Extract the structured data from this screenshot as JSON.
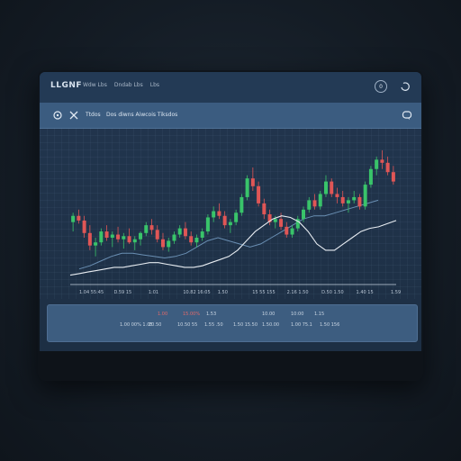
{
  "app": {
    "logo": "LLGNF"
  },
  "top_nav": [
    "Wdw Lbs",
    "Dndab Lbs",
    "Lbs"
  ],
  "top_buttons": {
    "circle_label": "0"
  },
  "toolbar": {
    "label_small": "Ttdos",
    "label_main": "Dos diwns Aiwcois  Tiksdos"
  },
  "chart_data": {
    "type": "candlestick",
    "title": "",
    "candles": [
      {
        "o": 40,
        "h": 46,
        "l": 34,
        "c": 44
      },
      {
        "o": 44,
        "h": 48,
        "l": 39,
        "c": 41
      },
      {
        "o": 41,
        "h": 44,
        "l": 30,
        "c": 33
      },
      {
        "o": 33,
        "h": 38,
        "l": 22,
        "c": 25
      },
      {
        "o": 25,
        "h": 30,
        "l": 18,
        "c": 27
      },
      {
        "o": 27,
        "h": 36,
        "l": 25,
        "c": 34
      },
      {
        "o": 34,
        "h": 38,
        "l": 28,
        "c": 30
      },
      {
        "o": 30,
        "h": 34,
        "l": 24,
        "c": 32
      },
      {
        "o": 32,
        "h": 37,
        "l": 27,
        "c": 29
      },
      {
        "o": 29,
        "h": 33,
        "l": 23,
        "c": 31
      },
      {
        "o": 31,
        "h": 36,
        "l": 26,
        "c": 27
      },
      {
        "o": 27,
        "h": 31,
        "l": 22,
        "c": 29
      },
      {
        "o": 29,
        "h": 34,
        "l": 25,
        "c": 33
      },
      {
        "o": 33,
        "h": 40,
        "l": 31,
        "c": 38
      },
      {
        "o": 38,
        "h": 42,
        "l": 32,
        "c": 35
      },
      {
        "o": 35,
        "h": 38,
        "l": 27,
        "c": 29
      },
      {
        "o": 29,
        "h": 33,
        "l": 22,
        "c": 24
      },
      {
        "o": 24,
        "h": 30,
        "l": 21,
        "c": 28
      },
      {
        "o": 28,
        "h": 34,
        "l": 26,
        "c": 32
      },
      {
        "o": 32,
        "h": 38,
        "l": 30,
        "c": 36
      },
      {
        "o": 36,
        "h": 40,
        "l": 29,
        "c": 31
      },
      {
        "o": 31,
        "h": 34,
        "l": 25,
        "c": 27
      },
      {
        "o": 27,
        "h": 32,
        "l": 24,
        "c": 30
      },
      {
        "o": 30,
        "h": 36,
        "l": 28,
        "c": 34
      },
      {
        "o": 34,
        "h": 45,
        "l": 32,
        "c": 43
      },
      {
        "o": 43,
        "h": 50,
        "l": 40,
        "c": 47
      },
      {
        "o": 47,
        "h": 52,
        "l": 42,
        "c": 44
      },
      {
        "o": 44,
        "h": 47,
        "l": 36,
        "c": 38
      },
      {
        "o": 38,
        "h": 42,
        "l": 33,
        "c": 40
      },
      {
        "o": 40,
        "h": 48,
        "l": 38,
        "c": 46
      },
      {
        "o": 46,
        "h": 58,
        "l": 44,
        "c": 56
      },
      {
        "o": 56,
        "h": 70,
        "l": 54,
        "c": 68
      },
      {
        "o": 68,
        "h": 75,
        "l": 60,
        "c": 63
      },
      {
        "o": 63,
        "h": 66,
        "l": 50,
        "c": 52
      },
      {
        "o": 52,
        "h": 55,
        "l": 42,
        "c": 45
      },
      {
        "o": 45,
        "h": 48,
        "l": 38,
        "c": 40
      },
      {
        "o": 40,
        "h": 44,
        "l": 36,
        "c": 42
      },
      {
        "o": 42,
        "h": 46,
        "l": 35,
        "c": 37
      },
      {
        "o": 37,
        "h": 40,
        "l": 30,
        "c": 32
      },
      {
        "o": 32,
        "h": 38,
        "l": 30,
        "c": 36
      },
      {
        "o": 36,
        "h": 44,
        "l": 34,
        "c": 42
      },
      {
        "o": 42,
        "h": 50,
        "l": 40,
        "c": 48
      },
      {
        "o": 48,
        "h": 56,
        "l": 46,
        "c": 54
      },
      {
        "o": 54,
        "h": 58,
        "l": 48,
        "c": 50
      },
      {
        "o": 50,
        "h": 60,
        "l": 48,
        "c": 58
      },
      {
        "o": 58,
        "h": 70,
        "l": 56,
        "c": 66
      },
      {
        "o": 66,
        "h": 68,
        "l": 56,
        "c": 58
      },
      {
        "o": 58,
        "h": 62,
        "l": 52,
        "c": 56
      },
      {
        "o": 56,
        "h": 60,
        "l": 50,
        "c": 52
      },
      {
        "o": 52,
        "h": 56,
        "l": 46,
        "c": 54
      },
      {
        "o": 54,
        "h": 60,
        "l": 52,
        "c": 56
      },
      {
        "o": 56,
        "h": 58,
        "l": 48,
        "c": 50
      },
      {
        "o": 50,
        "h": 66,
        "l": 48,
        "c": 64
      },
      {
        "o": 64,
        "h": 76,
        "l": 62,
        "c": 74
      },
      {
        "o": 74,
        "h": 82,
        "l": 70,
        "c": 80
      },
      {
        "o": 80,
        "h": 86,
        "l": 74,
        "c": 78
      },
      {
        "o": 78,
        "h": 82,
        "l": 70,
        "c": 72
      },
      {
        "o": 72,
        "h": 76,
        "l": 64,
        "c": 66
      }
    ],
    "line_white": [
      6,
      7,
      8,
      9,
      10,
      11,
      11,
      12,
      13,
      14,
      14,
      13,
      12,
      11,
      11,
      12,
      14,
      16,
      18,
      22,
      28,
      34,
      38,
      42,
      44,
      43,
      40,
      34,
      26,
      22,
      22,
      26,
      30,
      34,
      36,
      37,
      39,
      41
    ],
    "line_blue": [
      10,
      12,
      15,
      18,
      20,
      20,
      19,
      18,
      17,
      18,
      20,
      24,
      28,
      30,
      28,
      26,
      24,
      26,
      30,
      34,
      38,
      42,
      44,
      44,
      46,
      48,
      50,
      52,
      54
    ],
    "colors": {
      "up": "#39c46a",
      "down": "#e05656",
      "white_line": "#e8edf2",
      "blue_line": "#6a8fb3"
    },
    "x_ticks": [
      "1.04 55:45",
      "D.59 15",
      "1:01",
      "10.82 16:05",
      "1.50",
      "15 55 155",
      "2.16 1.50",
      "D.50 1.50",
      "1.40 15",
      "1.59"
    ]
  },
  "panel": {
    "row1": [
      {
        "text": "1.00",
        "neg": true
      },
      {
        "text": "15.00%",
        "neg": true
      },
      {
        "text": "1.53",
        "neg": false
      },
      {
        "text": "10.00",
        "neg": false
      },
      {
        "text": "10:00",
        "neg": false
      },
      {
        "text": "1.15",
        "neg": false
      }
    ],
    "row2": [
      "1.00 00% 1.05",
      "10.50",
      "10.50 55",
      "1.55 .50",
      "1.50 15.50",
      "1.50.00",
      "1.00 75.1",
      "1.50 156"
    ]
  }
}
